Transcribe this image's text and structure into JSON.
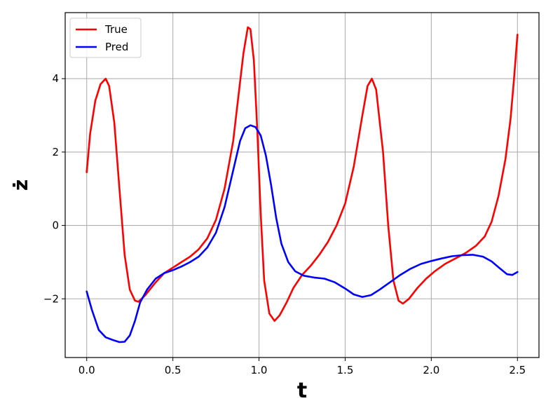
{
  "chart_data": {
    "type": "line",
    "title": "",
    "xlabel": "t",
    "ylabel": "ż",
    "xlim": [
      -0.125,
      2.625
    ],
    "ylim": [
      -3.6,
      5.8
    ],
    "xticks": [
      0.0,
      0.5,
      1.0,
      1.5,
      2.0,
      2.5
    ],
    "xtick_labels": [
      "0.0",
      "0.5",
      "1.0",
      "1.5",
      "2.0",
      "2.5"
    ],
    "yticks": [
      -2,
      0,
      2,
      4
    ],
    "ytick_labels": [
      "−2",
      "0",
      "2",
      "4"
    ],
    "grid": true,
    "legend_position": "top-left",
    "series": [
      {
        "name": "True",
        "color": "#ff0000",
        "points": [
          [
            0.0,
            1.45
          ],
          [
            0.02,
            2.5
          ],
          [
            0.05,
            3.4
          ],
          [
            0.08,
            3.85
          ],
          [
            0.11,
            4.0
          ],
          [
            0.13,
            3.8
          ],
          [
            0.16,
            2.8
          ],
          [
            0.19,
            1.0
          ],
          [
            0.22,
            -0.8
          ],
          [
            0.25,
            -1.75
          ],
          [
            0.28,
            -2.05
          ],
          [
            0.3,
            -2.08
          ],
          [
            0.34,
            -1.9
          ],
          [
            0.4,
            -1.55
          ],
          [
            0.45,
            -1.3
          ],
          [
            0.5,
            -1.15
          ],
          [
            0.55,
            -1.0
          ],
          [
            0.6,
            -0.85
          ],
          [
            0.65,
            -0.65
          ],
          [
            0.7,
            -0.35
          ],
          [
            0.75,
            0.15
          ],
          [
            0.8,
            1.0
          ],
          [
            0.85,
            2.3
          ],
          [
            0.88,
            3.5
          ],
          [
            0.91,
            4.7
          ],
          [
            0.935,
            5.4
          ],
          [
            0.95,
            5.35
          ],
          [
            0.97,
            4.5
          ],
          [
            0.99,
            2.6
          ],
          [
            1.01,
            0.3
          ],
          [
            1.03,
            -1.5
          ],
          [
            1.06,
            -2.4
          ],
          [
            1.09,
            -2.6
          ],
          [
            1.12,
            -2.45
          ],
          [
            1.16,
            -2.1
          ],
          [
            1.2,
            -1.7
          ],
          [
            1.25,
            -1.35
          ],
          [
            1.3,
            -1.1
          ],
          [
            1.35,
            -0.8
          ],
          [
            1.4,
            -0.45
          ],
          [
            1.45,
            0.0
          ],
          [
            1.5,
            0.6
          ],
          [
            1.55,
            1.6
          ],
          [
            1.6,
            3.0
          ],
          [
            1.63,
            3.8
          ],
          [
            1.655,
            4.0
          ],
          [
            1.68,
            3.7
          ],
          [
            1.72,
            2.0
          ],
          [
            1.75,
            0.0
          ],
          [
            1.78,
            -1.5
          ],
          [
            1.81,
            -2.05
          ],
          [
            1.835,
            -2.13
          ],
          [
            1.87,
            -2.0
          ],
          [
            1.92,
            -1.7
          ],
          [
            1.97,
            -1.45
          ],
          [
            2.02,
            -1.25
          ],
          [
            2.08,
            -1.05
          ],
          [
            2.14,
            -0.9
          ],
          [
            2.2,
            -0.75
          ],
          [
            2.26,
            -0.55
          ],
          [
            2.31,
            -0.3
          ],
          [
            2.35,
            0.1
          ],
          [
            2.39,
            0.8
          ],
          [
            2.43,
            1.8
          ],
          [
            2.46,
            2.9
          ],
          [
            2.48,
            4.0
          ],
          [
            2.5,
            5.2
          ]
        ]
      },
      {
        "name": "Pred",
        "color": "#0000ff",
        "points": [
          [
            0.0,
            -1.8
          ],
          [
            0.03,
            -2.3
          ],
          [
            0.07,
            -2.85
          ],
          [
            0.11,
            -3.05
          ],
          [
            0.15,
            -3.12
          ],
          [
            0.19,
            -3.18
          ],
          [
            0.22,
            -3.17
          ],
          [
            0.25,
            -3.0
          ],
          [
            0.28,
            -2.6
          ],
          [
            0.31,
            -2.1
          ],
          [
            0.35,
            -1.75
          ],
          [
            0.4,
            -1.45
          ],
          [
            0.45,
            -1.3
          ],
          [
            0.5,
            -1.22
          ],
          [
            0.55,
            -1.12
          ],
          [
            0.6,
            -1.0
          ],
          [
            0.65,
            -0.85
          ],
          [
            0.7,
            -0.6
          ],
          [
            0.75,
            -0.2
          ],
          [
            0.8,
            0.5
          ],
          [
            0.85,
            1.5
          ],
          [
            0.89,
            2.3
          ],
          [
            0.92,
            2.65
          ],
          [
            0.95,
            2.73
          ],
          [
            0.98,
            2.68
          ],
          [
            1.01,
            2.45
          ],
          [
            1.04,
            1.9
          ],
          [
            1.07,
            1.1
          ],
          [
            1.1,
            0.2
          ],
          [
            1.13,
            -0.5
          ],
          [
            1.17,
            -1.0
          ],
          [
            1.21,
            -1.25
          ],
          [
            1.26,
            -1.37
          ],
          [
            1.32,
            -1.42
          ],
          [
            1.38,
            -1.45
          ],
          [
            1.44,
            -1.55
          ],
          [
            1.5,
            -1.72
          ],
          [
            1.55,
            -1.88
          ],
          [
            1.6,
            -1.95
          ],
          [
            1.65,
            -1.9
          ],
          [
            1.7,
            -1.75
          ],
          [
            1.76,
            -1.55
          ],
          [
            1.82,
            -1.35
          ],
          [
            1.88,
            -1.18
          ],
          [
            1.94,
            -1.05
          ],
          [
            2.0,
            -0.97
          ],
          [
            2.06,
            -0.9
          ],
          [
            2.12,
            -0.84
          ],
          [
            2.18,
            -0.81
          ],
          [
            2.24,
            -0.8
          ],
          [
            2.3,
            -0.85
          ],
          [
            2.35,
            -0.98
          ],
          [
            2.4,
            -1.18
          ],
          [
            2.44,
            -1.33
          ],
          [
            2.47,
            -1.35
          ],
          [
            2.5,
            -1.27
          ]
        ]
      }
    ]
  }
}
